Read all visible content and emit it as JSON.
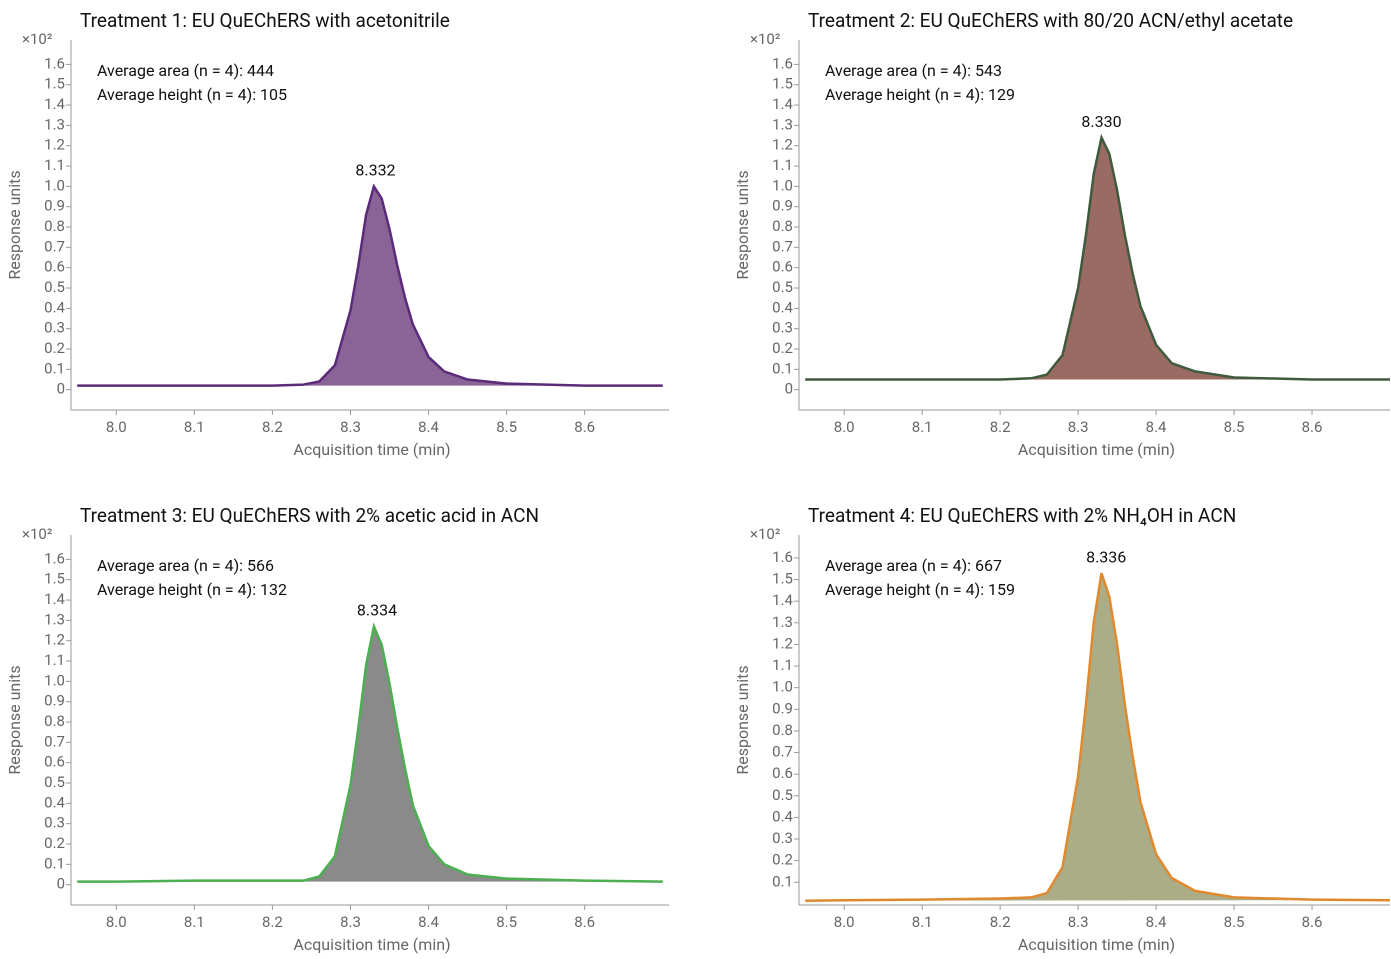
{
  "chart_data": [
    {
      "type": "area",
      "title": "Treatment 1: EU QuEChERS with acetonitrile",
      "annotations": [
        "Average area (n = 4): 444",
        "Average height (n = 4): 105"
      ],
      "peak_label": 8.332,
      "y_multiplier": "×10²",
      "ylabel": "Response units",
      "xlabel": "Acquisition time (min)",
      "color": "#8a6497",
      "line_color": "#5b2a78",
      "x": [
        7.95,
        8.0,
        8.1,
        8.2,
        8.24,
        8.26,
        8.28,
        8.3,
        8.31,
        8.32,
        8.33,
        8.34,
        8.35,
        8.36,
        8.37,
        8.38,
        8.4,
        8.42,
        8.45,
        8.5,
        8.6,
        8.7
      ],
      "values": [
        0.02,
        0.02,
        0.02,
        0.02,
        0.025,
        0.04,
        0.12,
        0.39,
        0.61,
        0.86,
        1.0,
        0.94,
        0.79,
        0.61,
        0.45,
        0.32,
        0.16,
        0.09,
        0.05,
        0.03,
        0.02,
        0.02
      ],
      "xlim": [
        7.942,
        8.708
      ],
      "xticks": [
        {
          "value": 8,
          "label": "8.0"
        },
        8.1,
        8.2,
        8.3,
        8.4,
        8.5,
        8.6
      ],
      "ylim": [
        -0.1,
        1.72
      ],
      "yticks": [
        0,
        0.1,
        0.2,
        0.3,
        0.4,
        0.5,
        0.6,
        0.7,
        0.8,
        0.9,
        {
          "value": 1,
          "label": "1.0"
        },
        1.1,
        1.2,
        1.3,
        1.4,
        1.5,
        1.6
      ]
    },
    {
      "type": "area",
      "title": "Treatment 2: EU QuEChERS with 80/20 ACN/ethyl acetate",
      "annotations": [
        "Average area (n = 4): 543",
        "Average height (n = 4): 129"
      ],
      "peak_label": {
        "value": 8.33,
        "label": "8.330"
      },
      "y_multiplier": "×10²",
      "ylabel": "Response units",
      "xlabel": "Acquisition time (min)",
      "color": "#9a6b62",
      "line_color": "#3f5a3c",
      "x": [
        7.95,
        8.0,
        8.1,
        8.2,
        8.24,
        8.26,
        8.28,
        8.3,
        8.31,
        8.32,
        8.33,
        8.34,
        8.35,
        8.36,
        8.37,
        8.38,
        8.4,
        8.42,
        8.45,
        8.5,
        8.6,
        8.7
      ],
      "values": [
        0.05,
        0.05,
        0.05,
        0.05,
        0.056,
        0.074,
        0.17,
        0.5,
        0.76,
        1.06,
        1.24,
        1.16,
        0.98,
        0.76,
        0.57,
        0.41,
        0.22,
        0.13,
        0.09,
        0.06,
        0.05,
        0.05
      ],
      "xlim": [
        7.942,
        8.7
      ],
      "xticks": [
        {
          "value": 8,
          "label": "8.0"
        },
        8.1,
        8.2,
        8.3,
        8.4,
        8.5,
        8.6
      ],
      "ylim": [
        -0.1,
        1.72
      ],
      "yticks": [
        0,
        0.1,
        0.2,
        0.3,
        0.4,
        0.5,
        0.6,
        0.7,
        0.8,
        0.9,
        {
          "value": 1,
          "label": "1.0"
        },
        1.1,
        1.2,
        1.3,
        1.4,
        1.5,
        1.6
      ]
    },
    {
      "type": "area",
      "title": "Treatment 3: EU QuEChERS with 2% acetic acid in ACN",
      "annotations": [
        "Average area (n = 4): 566",
        "Average height (n = 4): 132"
      ],
      "peak_label": 8.334,
      "y_multiplier": "×10²",
      "ylabel": "Response units",
      "xlabel": "Acquisition time (min)",
      "color": "#8a8a8a",
      "line_color": "#4caf50",
      "x": [
        7.95,
        8.0,
        8.1,
        8.2,
        8.24,
        8.26,
        8.28,
        8.3,
        8.31,
        8.32,
        8.33,
        8.34,
        8.35,
        8.36,
        8.37,
        8.38,
        8.4,
        8.42,
        8.45,
        8.5,
        8.6,
        8.7
      ],
      "values": [
        0.015,
        0.015,
        0.02,
        0.02,
        0.02,
        0.04,
        0.14,
        0.49,
        0.77,
        1.08,
        1.27,
        1.18,
        0.99,
        0.77,
        0.57,
        0.39,
        0.19,
        0.1,
        0.05,
        0.03,
        0.02,
        0.015
      ],
      "xlim": [
        7.942,
        8.708
      ],
      "xticks": [
        {
          "value": 8,
          "label": "8.0"
        },
        8.1,
        8.2,
        8.3,
        8.4,
        8.5,
        8.6
      ],
      "ylim": [
        -0.1,
        1.72
      ],
      "yticks": [
        0,
        0.1,
        0.2,
        0.3,
        0.4,
        0.5,
        0.6,
        0.7,
        0.8,
        0.9,
        {
          "value": 1,
          "label": "1.0"
        },
        1.1,
        1.2,
        1.3,
        1.4,
        1.5,
        1.6
      ]
    },
    {
      "type": "area",
      "title": "Treatment 4: EU QuEChERS with 2% NH₄OH in ACN",
      "annotations": [
        "Average area (n = 4): 667",
        "Average height (n = 4): 159"
      ],
      "peak_label": 8.336,
      "y_multiplier": "×10²",
      "ylabel": "Response units",
      "xlabel": "Acquisition time (min)",
      "color": "#abad86",
      "line_color": "#e08a30",
      "x": [
        7.95,
        8.0,
        8.1,
        8.2,
        8.24,
        8.26,
        8.28,
        8.3,
        8.31,
        8.32,
        8.33,
        8.34,
        8.35,
        8.36,
        8.37,
        8.38,
        8.4,
        8.42,
        8.45,
        8.5,
        8.6,
        8.7
      ],
      "values": [
        0.015,
        0.017,
        0.02,
        0.025,
        0.03,
        0.05,
        0.17,
        0.59,
        0.92,
        1.3,
        1.53,
        1.42,
        1.2,
        0.92,
        0.68,
        0.47,
        0.23,
        0.12,
        0.06,
        0.03,
        0.02,
        0.017
      ],
      "xlim": [
        7.942,
        8.7
      ],
      "xticks": [
        {
          "value": 8,
          "label": "8.0"
        },
        8.1,
        8.2,
        8.3,
        8.4,
        8.5,
        8.6
      ],
      "ylim": [
        -0.005,
        1.706
      ],
      "yticks": [
        0.1,
        0.2,
        0.3,
        0.4,
        0.5,
        0.6,
        0.7,
        0.8,
        0.9,
        {
          "value": 1,
          "label": "1.0"
        },
        1.1,
        1.2,
        1.3,
        1.4,
        1.5,
        1.6
      ]
    }
  ]
}
